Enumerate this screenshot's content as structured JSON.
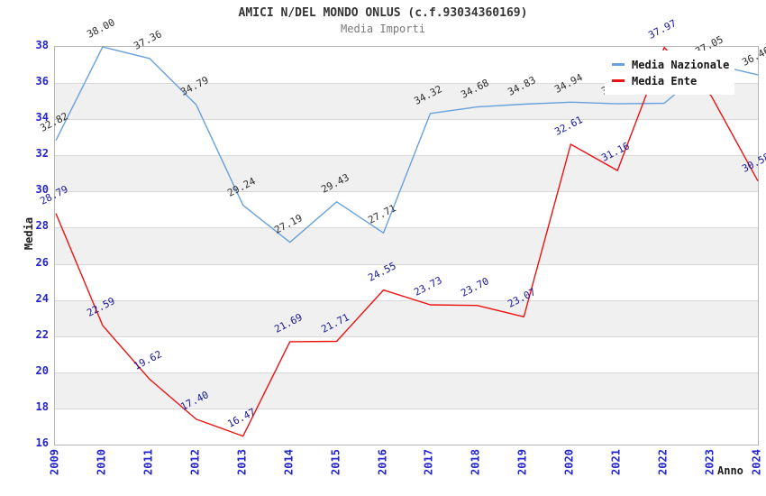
{
  "chart_data": {
    "type": "line",
    "title": "AMICI N/DEL MONDO ONLUS (c.f.93034360169)",
    "subtitle": "Media Importi",
    "xlabel": "Anno",
    "ylabel": "Media",
    "x": [
      "2009",
      "2010",
      "2011",
      "2012",
      "2013",
      "2014",
      "2015",
      "2016",
      "2017",
      "2018",
      "2019",
      "2020",
      "2021",
      "2022",
      "2023",
      "2024"
    ],
    "ylim": [
      16,
      38
    ],
    "ytick_step": 2,
    "grid": "horizontal-with-alternating-bands",
    "legend_position": "top-right-overlapping-plot",
    "series": [
      {
        "name": "Media Nazionale",
        "color": "#68a1dc",
        "label_color": "#2e2e2e",
        "values": [
          32.82,
          38.0,
          37.36,
          34.79,
          29.24,
          27.19,
          29.43,
          27.71,
          34.32,
          34.68,
          34.83,
          34.94,
          34.85,
          34.88,
          37.05,
          36.46
        ]
      },
      {
        "name": "Media Ente",
        "color": "#ee1111",
        "label_color": "#17179b",
        "values": [
          28.79,
          22.59,
          19.62,
          17.4,
          16.47,
          21.69,
          21.71,
          24.55,
          23.73,
          23.7,
          23.07,
          32.61,
          31.16,
          37.97,
          35.3,
          30.58
        ]
      }
    ],
    "value_label_format": "two decimals, rotated, above each point",
    "hidden_value_labels": [
      {
        "series": "Media Nazionale",
        "x": [
          "2021",
          "2022"
        ],
        "note": "occluded by legend box; values estimated from line position"
      },
      {
        "series": "Media Ente",
        "x": [
          "2023"
        ],
        "note": "occluded by legend box; value estimated from line position"
      }
    ],
    "axis_tick_color": "#2323cf",
    "band_color": "#f0f0f0",
    "gridline_color": "#d8d8d8",
    "plot_border_color": "#b6b6b6",
    "title_color": "#343434",
    "subtitle_color": "#7a7a7a"
  }
}
